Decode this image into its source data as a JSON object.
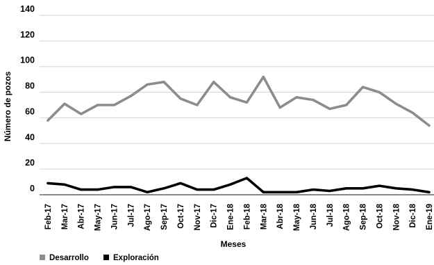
{
  "chart_data": {
    "type": "line",
    "title": "",
    "xlabel": "Meses",
    "ylabel": "Número de pozos",
    "ylim": [
      0,
      140
    ],
    "yticks": [
      0,
      20,
      40,
      60,
      80,
      100,
      120,
      140
    ],
    "grid": true,
    "legend_position": "bottom-left",
    "categories": [
      "Feb-17",
      "Mar-17",
      "Abr-17",
      "May-17",
      "Jun-17",
      "Jul-17",
      "Ago-17",
      "Sep-17",
      "Oct-17",
      "Nov-17",
      "Dic-17",
      "Ene-18",
      "Feb-18",
      "Mar-18",
      "Abr-18",
      "May-18",
      "Jun-18",
      "Jul-18",
      "Ago-18",
      "Sep-18",
      "Oct-18",
      "Nov-18",
      "Dic-18",
      "Ene-19"
    ],
    "series": [
      {
        "name": "Desarrollo",
        "color": "#8c8c8c",
        "values": [
          58,
          71,
          63,
          70,
          70,
          77,
          86,
          88,
          75,
          70,
          88,
          76,
          72,
          92,
          68,
          76,
          74,
          67,
          70,
          84,
          80,
          71,
          64,
          54
        ]
      },
      {
        "name": "Exploración",
        "color": "#000000",
        "values": [
          9,
          8,
          4,
          4,
          6,
          6,
          2,
          5,
          9,
          4,
          4,
          8,
          13,
          2,
          2,
          2,
          4,
          3,
          5,
          5,
          7,
          5,
          4,
          2
        ]
      }
    ]
  }
}
